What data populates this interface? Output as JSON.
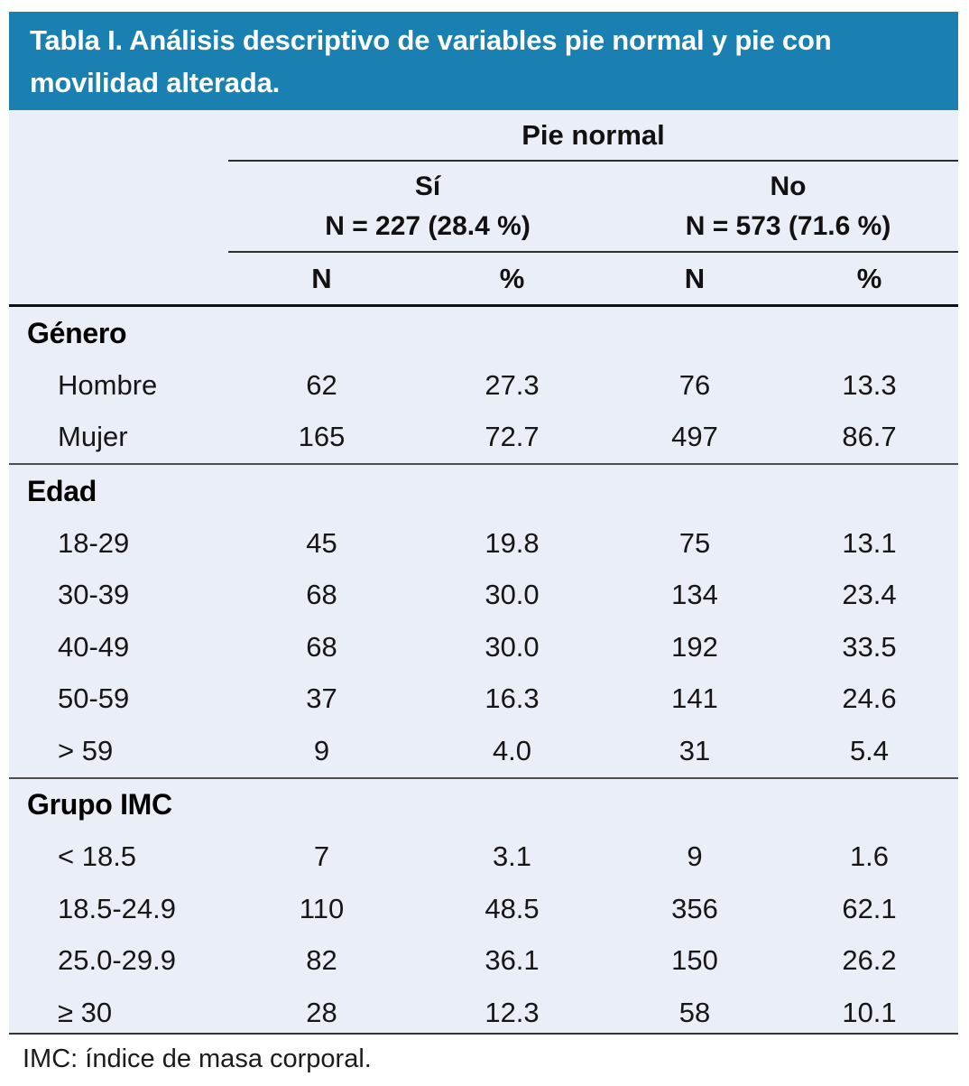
{
  "title": "Tabla I. Análisis descriptivo de variables pie normal y pie con movilidad alterada.",
  "colors": {
    "header_bg": "#1A80B1",
    "body_bg": "#EAEEF6",
    "title_text": "#FFFFFF"
  },
  "table": {
    "group_header": "Pie normal",
    "col_groups": [
      {
        "label": "Sí",
        "sublabel": "N = 227 (28.4 %)"
      },
      {
        "label": "No",
        "sublabel": "N = 573 (71.6 %)"
      }
    ],
    "col_headers": [
      "N",
      "%",
      "N",
      "%"
    ],
    "sections": [
      {
        "header": "Género",
        "rows": [
          {
            "label": "Hombre",
            "values": [
              "62",
              "27.3",
              "76",
              "13.3"
            ]
          },
          {
            "label": "Mujer",
            "values": [
              "165",
              "72.7",
              "497",
              "86.7"
            ]
          }
        ]
      },
      {
        "header": "Edad",
        "rows": [
          {
            "label": "18-29",
            "values": [
              "45",
              "19.8",
              "75",
              "13.1"
            ]
          },
          {
            "label": "30-39",
            "values": [
              "68",
              "30.0",
              "134",
              "23.4"
            ]
          },
          {
            "label": "40-49",
            "values": [
              "68",
              "30.0",
              "192",
              "33.5"
            ]
          },
          {
            "label": "50-59",
            "values": [
              "37",
              "16.3",
              "141",
              "24.6"
            ]
          },
          {
            "label": "> 59",
            "values": [
              "9",
              "4.0",
              "31",
              "5.4"
            ]
          }
        ]
      },
      {
        "header": "Grupo IMC",
        "rows": [
          {
            "label": "< 18.5",
            "values": [
              "7",
              "3.1",
              "9",
              "1.6"
            ]
          },
          {
            "label": "18.5-24.9",
            "values": [
              "110",
              "48.5",
              "356",
              "62.1"
            ]
          },
          {
            "label": "25.0-29.9",
            "values": [
              "82",
              "36.1",
              "150",
              "26.2"
            ]
          },
          {
            "label": "≥ 30",
            "values": [
              "28",
              "12.3",
              "58",
              "10.1"
            ]
          }
        ]
      }
    ]
  },
  "footnote": "IMC: índice de masa corporal."
}
